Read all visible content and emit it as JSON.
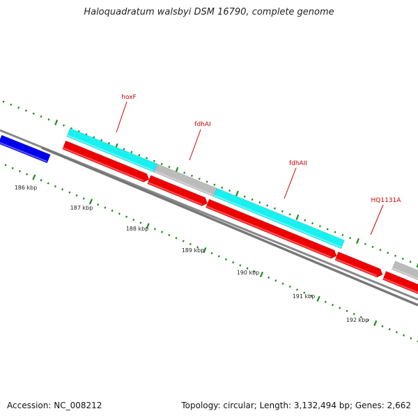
{
  "title": "Haloquadratum walsbyi DSM 16790, complete genome",
  "footer": {
    "accession": "Accession: NC_008212",
    "summary": "Topology: circular; Length: 3,132,494 bp; Genes: 2,662"
  },
  "colors": {
    "backbone": "#888888",
    "tick": "#1a8c1a",
    "label": "#cc0000",
    "blue_gene": "#0000ee",
    "cyan_gene": "#19f0f0",
    "gray_gene": "#bbbbbb",
    "red_gene": "#ee0000"
  },
  "ruler_labels": [
    "186 kbp",
    "187 kbp",
    "188 kbp",
    "189 kbp",
    "190 kbp",
    "191 kbp",
    "192 kbp"
  ],
  "gene_labels": [
    "hoxF",
    "fdhAI",
    "fdhAII",
    "HQ1131A"
  ],
  "features": [
    {
      "track": "upper",
      "type": "cyan",
      "name": "hoxF"
    },
    {
      "track": "upper",
      "type": "gray",
      "name": "fdhAI"
    },
    {
      "track": "upper",
      "type": "cyan",
      "name": "fdhAII"
    },
    {
      "track": "upper",
      "type": "gray",
      "name": ""
    },
    {
      "track": "lower",
      "type": "blue",
      "name": ""
    },
    {
      "track": "lower",
      "type": "red",
      "name": ""
    },
    {
      "track": "lower",
      "type": "red",
      "name": ""
    },
    {
      "track": "lower",
      "type": "red",
      "name": ""
    },
    {
      "track": "lower",
      "type": "red",
      "name": "HQ1131A"
    },
    {
      "track": "lower",
      "type": "red",
      "name": ""
    }
  ]
}
